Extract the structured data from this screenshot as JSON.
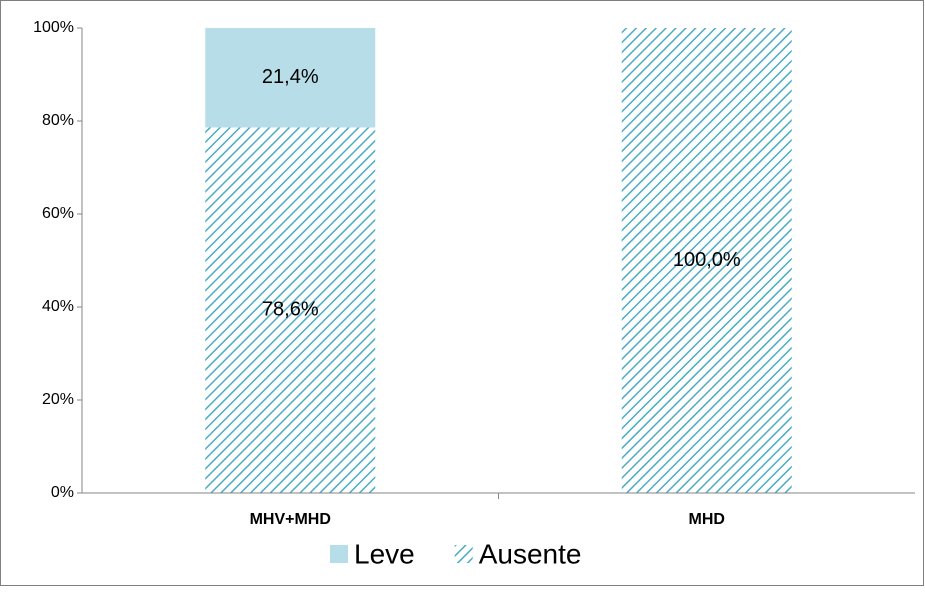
{
  "chart_data": {
    "type": "stacked_bar",
    "categories": [
      "MHV+MHD",
      "MHD"
    ],
    "series": [
      {
        "name": "Ausente",
        "color": "#4bacc6",
        "pattern": "hatch",
        "values": [
          78.6,
          100.0
        ],
        "value_labels": [
          "78,6%",
          "100,0%"
        ]
      },
      {
        "name": "Leve",
        "color": "#b7dde8",
        "values": [
          21.4,
          0
        ],
        "value_labels": [
          "21,4%",
          null
        ]
      }
    ],
    "ylim": [
      0,
      100
    ],
    "yticks": [
      {
        "value": 0,
        "label": "0%"
      },
      {
        "value": 20,
        "label": "20%"
      },
      {
        "value": 40,
        "label": "40%"
      },
      {
        "value": 60,
        "label": "60%"
      },
      {
        "value": 80,
        "label": "80%"
      },
      {
        "value": 100,
        "label": "100%"
      }
    ],
    "grid": false,
    "legend": "bottom"
  }
}
